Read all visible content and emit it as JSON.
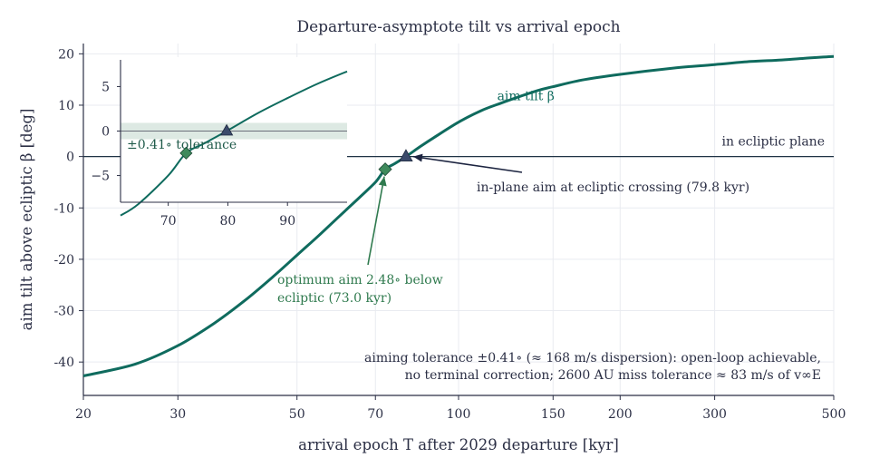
{
  "chart_data": {
    "type": "line",
    "title": "Departure-asymptote tilt vs arrival epoch",
    "xlabel": "arrival epoch T after 2029 departure [kyr]",
    "ylabel": "aim tilt above ecliptic β [deg]",
    "xscale": "log",
    "xlim": [
      20,
      500
    ],
    "ylim": [
      -46.5,
      22
    ],
    "xticks": [
      20,
      30,
      50,
      70,
      100,
      150,
      200,
      300,
      500
    ],
    "yticks": [
      -40,
      -30,
      -20,
      -10,
      0,
      10,
      20
    ],
    "grid": true,
    "series": [
      {
        "name": "aim tilt β",
        "color": "#0f6b5e",
        "x": [
          20,
          25,
          30,
          35,
          40,
          45,
          50,
          55,
          60,
          65,
          70,
          73,
          76,
          79.8,
          85,
          90,
          100,
          110,
          120,
          140,
          150,
          170,
          200,
          250,
          300,
          350,
          400,
          450,
          500
        ],
        "y": [
          -42.7,
          -40.4,
          -36.8,
          -32.5,
          -28.0,
          -23.5,
          -19.2,
          -15.3,
          -11.6,
          -8.2,
          -5.0,
          -2.48,
          -1.4,
          0,
          2.0,
          3.7,
          6.7,
          8.9,
          10.4,
          12.8,
          13.6,
          14.9,
          16.0,
          17.2,
          17.9,
          18.5,
          18.8,
          19.2,
          19.5
        ]
      }
    ],
    "reference_line": {
      "y": 0,
      "label": "in ecliptic plane"
    },
    "series_label": "aim tilt β",
    "markers": [
      {
        "kind": "diamond",
        "x": 73.0,
        "y": -2.48,
        "color": "#3e8a5c",
        "label_lines": [
          "optimum aim 2.48∘ below",
          "ecliptic (73.0 kyr)"
        ]
      },
      {
        "kind": "triangle",
        "x": 79.8,
        "y": 0,
        "color": "#3b4a6b",
        "label": "in-plane aim at ecliptic crossing (79.8 kyr)"
      }
    ],
    "footnote_lines": [
      "aiming tolerance ±0.41∘ (≈ 168 m/s dispersion): open-loop achievable,",
      "no terminal correction; 2600 AU miss tolerance ≈ 83 m/s of v∞E"
    ],
    "inset": {
      "xlim": [
        62,
        100
      ],
      "ylim": [
        -8,
        8
      ],
      "xticks": [
        70,
        80,
        90
      ],
      "yticks": [
        -5,
        0,
        5
      ],
      "tolerance_band": [
        -0.41,
        0.41
      ],
      "band_label": "±0.41∘ tolerance",
      "x": [
        62,
        65,
        70,
        73,
        76,
        79.8,
        85,
        90,
        95,
        100
      ],
      "y": [
        -9.5,
        -8.2,
        -5.0,
        -2.48,
        -1.4,
        0,
        2.0,
        3.7,
        5.3,
        6.7
      ]
    }
  }
}
